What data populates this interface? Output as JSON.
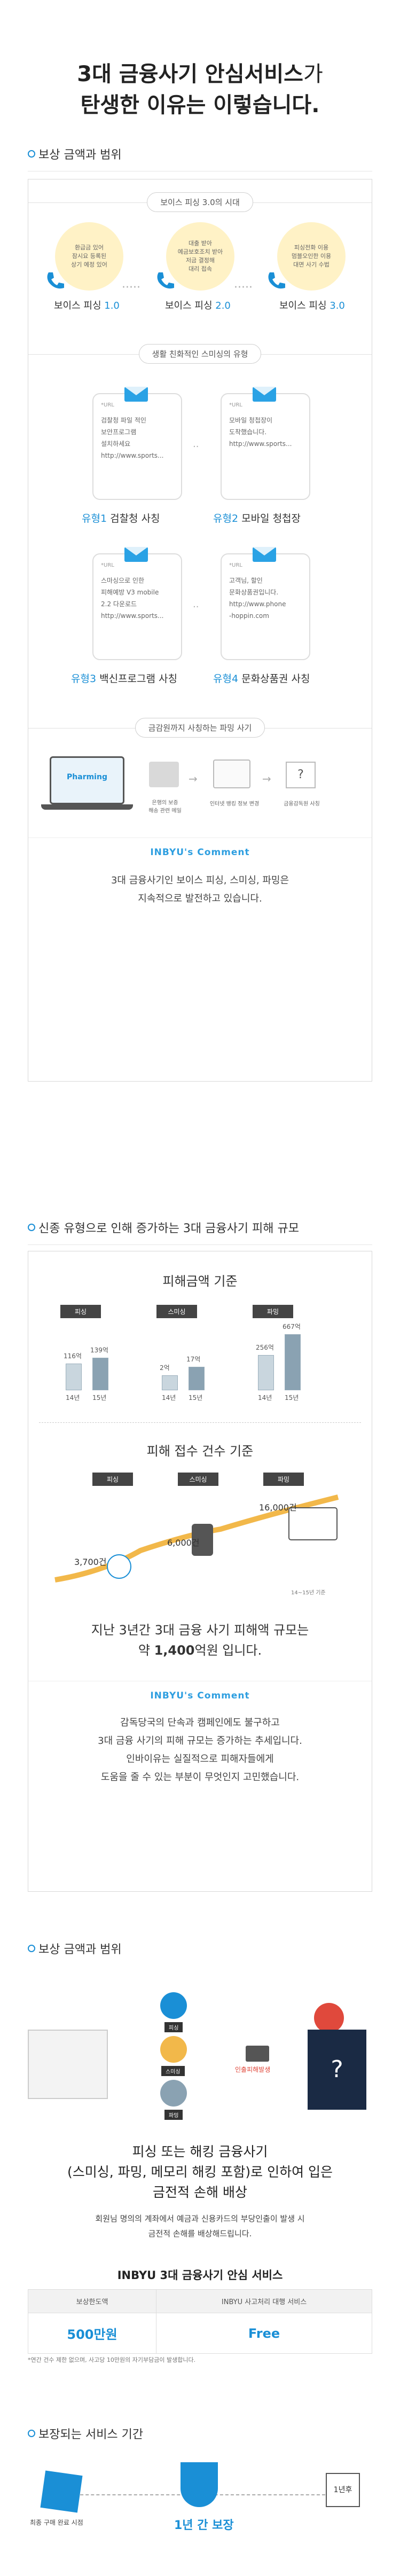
{
  "header": {
    "line1_bold": "3대 금융사기 안심서비스",
    "line1_light": "가",
    "line2": "탄생한 이유는 이렇습니다."
  },
  "s1": {
    "heading": "보상 금액과 범위",
    "voice_pill": "보이스 피싱 3.0의 시대",
    "bubbles": [
      "환급금 있어\n잠시요 등록된\n상기 예정 있어",
      "대출 받아\n예금보호조치 받아\n저금 결정해\n대리 접속",
      "피싱전화 이용\n멈블오인한 이용\n대면 사기 수법"
    ],
    "phones": [
      {
        "name": "보이스 피싱 ",
        "ver": "1.0"
      },
      {
        "name": "보이스 피싱 ",
        "ver": "2.0"
      },
      {
        "name": "보이스 피싱 ",
        "ver": "3.0"
      }
    ],
    "smish_pill": "생활 친화적인 스미싱의 유형",
    "cards": [
      {
        "tag": "*URL",
        "lines": [
          "검찰청 파일 적인",
          "보안프로그램",
          "설치하세요",
          "http://www.sports..."
        ],
        "num": "유형1",
        "name": " 검찰청 사칭"
      },
      {
        "tag": "*URL",
        "lines": [
          "모바일 청첩장이",
          "도착했습니다.",
          "http://www.sports..."
        ],
        "num": "유형2",
        "name": " 모바일 청첩장"
      },
      {
        "tag": "*URL",
        "lines": [
          "스마싱으로 인한",
          "피해예방 V3 mobile",
          "2.2 다운로드",
          "http://www.sports..."
        ],
        "num": "유형3",
        "name": " 백신프로그램 사칭"
      },
      {
        "tag": "*URL",
        "lines": [
          "고객님, 할인",
          "문화상품권입니다.",
          "http://www.phone",
          "-hoppin.com"
        ],
        "num": "유형4",
        "name": " 문화상품권 사칭"
      }
    ],
    "pharm_pill": "금감원까지 사칭하는 파밍 사기",
    "pharm_screen": "Pharming",
    "pharm_steps": [
      "은행의 보증\n해송 관련 메일",
      "인터넷 뱅킹 정보 변경",
      "금융감독원 사칭"
    ],
    "comment_title": "INBYU's Comment",
    "comment": [
      "3대 금융사기인 보이스 피싱, 스미싱, 파밍은",
      "지속적으로 발전하고 있습니다."
    ]
  },
  "s2": {
    "heading": "신종 유형으로 인해 증가하는 3대 금융사기 피해 규모",
    "damage_title": "피해금액 기준",
    "categories": [
      "피싱",
      "스미싱",
      "파밍"
    ],
    "chart_data": {
      "type": "bar",
      "title": "피해금액 기준",
      "series": [
        {
          "name": "피싱",
          "labels": [
            "14년",
            "15년"
          ],
          "values_text": [
            "116억",
            "139억"
          ]
        },
        {
          "name": "스미싱",
          "labels": [
            "14년",
            "15년"
          ],
          "values_text": [
            "2억",
            "17억"
          ]
        },
        {
          "name": "파밍",
          "labels": [
            "14년",
            "15년"
          ],
          "values_text": [
            "256억",
            "667억"
          ]
        }
      ]
    },
    "count_title": "피해 접수 건수 기준",
    "counts": [
      "3,700건",
      "6,000건",
      "16,000건"
    ],
    "count_note": "14~15년 기준",
    "summary1": "지난 3년간 3대 금융 사기 피해액 규모는",
    "summary2_pre": "약 ",
    "summary2_bold": "1,400",
    "summary2_post": "억원 입니다.",
    "comment_title": "INBYU's Comment",
    "comment": [
      "감독당국의 단속과 캠페인에도 불구하고",
      "3대 금융 사기의 피해 규모는 증가하는 추세입니다.",
      "인바이유는 실질적으로 피해자들에게",
      "도움을 줄 수 있는 부분이 무엇인지 고민했습니다."
    ]
  },
  "s3": {
    "heading": "보상 금액과 범위",
    "tags": [
      "피싱",
      "스미싱",
      "파밍"
    ],
    "loss_label": "인출피해발생",
    "main1": "피싱 또는 해킹 금융사기",
    "main2": "(스미싱, 파밍, 메모리 해킹 포함)로 인하여 입은",
    "main3": "금전적 손해 배상",
    "sub1": "회원님 명의의 계좌에서 예금과 신용카드의 부당인출이 발생 시",
    "sub2": "금전적 손해를 배상해드립니다.",
    "table_title": "INBYU 3대 금융사기 안심 서비스",
    "th1": "보상한도액",
    "th2": "INBYU 사고처리 대행 서비스",
    "td1": "500만원",
    "td2": "Free",
    "note": "*연간 건수 제한 없으며, 사고당 10만원의 자기부담금이 발생합니다."
  },
  "s4": {
    "heading": "보장되는 서비스 기간",
    "start": "최종 구매 완료 시점",
    "end_cal": "1년후",
    "period": "1년 간 보장"
  }
}
